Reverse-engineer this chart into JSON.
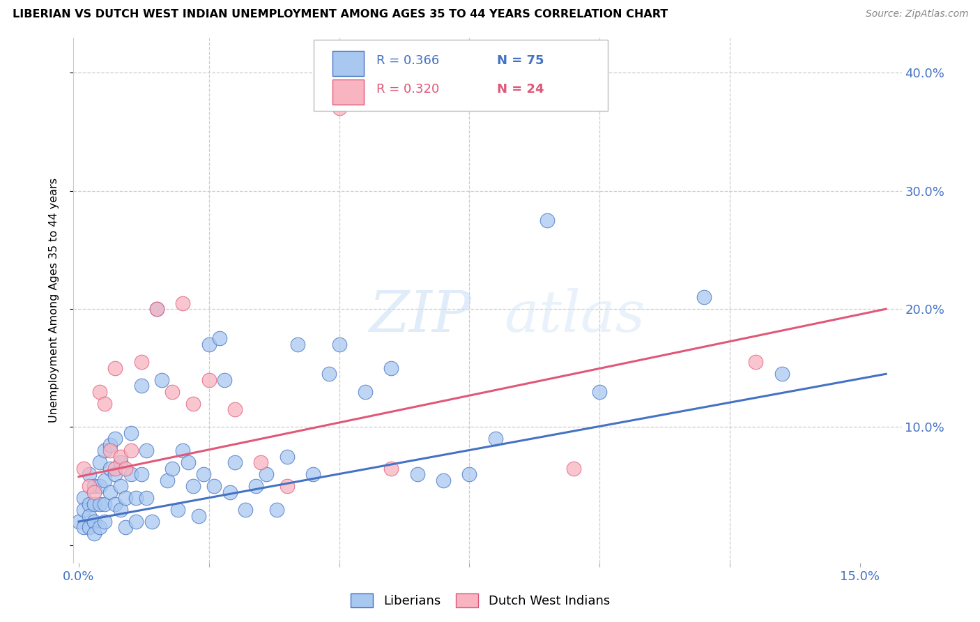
{
  "title": "LIBERIAN VS DUTCH WEST INDIAN UNEMPLOYMENT AMONG AGES 35 TO 44 YEARS CORRELATION CHART",
  "source": "Source: ZipAtlas.com",
  "ylabel_label": "Unemployment Among Ages 35 to 44 years",
  "xlim": [
    -0.001,
    0.158
  ],
  "ylim": [
    -0.015,
    0.43
  ],
  "liberian_color": "#A8C8F0",
  "dwi_color": "#F8B4C0",
  "line_blue": "#4472C4",
  "line_pink": "#E05878",
  "watermark": "ZIPatlas",
  "liberian_x": [
    0.0,
    0.001,
    0.001,
    0.001,
    0.002,
    0.002,
    0.002,
    0.002,
    0.003,
    0.003,
    0.003,
    0.003,
    0.004,
    0.004,
    0.004,
    0.004,
    0.005,
    0.005,
    0.005,
    0.005,
    0.006,
    0.006,
    0.006,
    0.007,
    0.007,
    0.007,
    0.008,
    0.008,
    0.008,
    0.009,
    0.009,
    0.01,
    0.01,
    0.011,
    0.011,
    0.012,
    0.012,
    0.013,
    0.013,
    0.014,
    0.015,
    0.016,
    0.017,
    0.018,
    0.019,
    0.02,
    0.021,
    0.022,
    0.023,
    0.024,
    0.025,
    0.026,
    0.027,
    0.028,
    0.029,
    0.03,
    0.032,
    0.034,
    0.036,
    0.038,
    0.04,
    0.042,
    0.045,
    0.048,
    0.05,
    0.055,
    0.06,
    0.065,
    0.07,
    0.075,
    0.08,
    0.09,
    0.1,
    0.12,
    0.135
  ],
  "liberian_y": [
    0.02,
    0.04,
    0.03,
    0.015,
    0.035,
    0.025,
    0.06,
    0.015,
    0.02,
    0.05,
    0.035,
    0.01,
    0.07,
    0.05,
    0.035,
    0.015,
    0.08,
    0.055,
    0.035,
    0.02,
    0.085,
    0.065,
    0.045,
    0.09,
    0.06,
    0.035,
    0.07,
    0.05,
    0.03,
    0.04,
    0.015,
    0.095,
    0.06,
    0.04,
    0.02,
    0.135,
    0.06,
    0.08,
    0.04,
    0.02,
    0.2,
    0.14,
    0.055,
    0.065,
    0.03,
    0.08,
    0.07,
    0.05,
    0.025,
    0.06,
    0.17,
    0.05,
    0.175,
    0.14,
    0.045,
    0.07,
    0.03,
    0.05,
    0.06,
    0.03,
    0.075,
    0.17,
    0.06,
    0.145,
    0.17,
    0.13,
    0.15,
    0.06,
    0.055,
    0.06,
    0.09,
    0.275,
    0.13,
    0.21,
    0.145
  ],
  "dwi_x": [
    0.001,
    0.002,
    0.003,
    0.004,
    0.005,
    0.006,
    0.007,
    0.007,
    0.008,
    0.009,
    0.01,
    0.012,
    0.015,
    0.018,
    0.02,
    0.022,
    0.025,
    0.03,
    0.035,
    0.04,
    0.05,
    0.06,
    0.095,
    0.13
  ],
  "dwi_y": [
    0.065,
    0.05,
    0.045,
    0.13,
    0.12,
    0.08,
    0.065,
    0.15,
    0.075,
    0.065,
    0.08,
    0.155,
    0.2,
    0.13,
    0.205,
    0.12,
    0.14,
    0.115,
    0.07,
    0.05,
    0.37,
    0.065,
    0.065,
    0.155
  ],
  "blue_line_x": [
    0.0,
    0.155
  ],
  "blue_line_y": [
    0.02,
    0.145
  ],
  "pink_line_x": [
    0.0,
    0.155
  ],
  "pink_line_y": [
    0.058,
    0.2
  ]
}
